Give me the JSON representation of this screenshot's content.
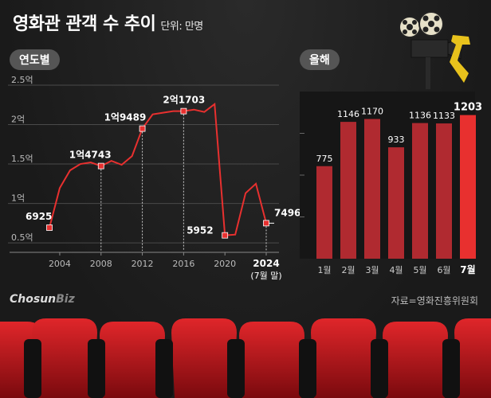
{
  "title": "영화관 관객 수 추이",
  "unit": "단위: 만명",
  "source": "자료=영화진흥위원회",
  "logo": {
    "main": "Chosun",
    "accent": "Biz"
  },
  "colors": {
    "line": "#e8302f",
    "bar": "#b02a30",
    "bar_highlight": "#e8302f",
    "background": "#1e1e1e",
    "seat": "#c8151b"
  },
  "chart_data": [
    {
      "type": "line",
      "label": "연도별",
      "x": [
        2003,
        2004,
        2005,
        2006,
        2007,
        2008,
        2009,
        2010,
        2011,
        2012,
        2013,
        2014,
        2015,
        2016,
        2017,
        2018,
        2019,
        2020,
        2021,
        2022,
        2023,
        2024
      ],
      "values": [
        6925,
        11950,
        14200,
        15000,
        15200,
        14743,
        15400,
        14900,
        16000,
        19489,
        21300,
        21500,
        21700,
        21703,
        21900,
        21600,
        22600,
        5952,
        6050,
        11300,
        12500,
        7496
      ],
      "point_labels": [
        {
          "index": 0,
          "text": "6925"
        },
        {
          "index": 5,
          "text": "1억4743"
        },
        {
          "index": 9,
          "text": "1억9489"
        },
        {
          "index": 13,
          "text": "2억1703"
        },
        {
          "index": 17,
          "text": "5952"
        },
        {
          "index": 21,
          "text": "7496"
        }
      ],
      "y_ticks": [
        {
          "value": 5000,
          "label": "0.5억"
        },
        {
          "value": 10000,
          "label": "1억"
        },
        {
          "value": 15000,
          "label": "1.5억"
        },
        {
          "value": 20000,
          "label": "2억"
        },
        {
          "value": 25000,
          "label": "2.5억"
        }
      ],
      "x_ticks": [
        {
          "value": 2004,
          "label": "2004"
        },
        {
          "value": 2008,
          "label": "2008"
        },
        {
          "value": 2012,
          "label": "2012"
        },
        {
          "value": 2016,
          "label": "2016"
        },
        {
          "value": 2020,
          "label": "2020"
        },
        {
          "value": 2024,
          "label": "2024"
        }
      ],
      "x_tick_note": "(7월 말)",
      "xlim": [
        2003,
        2024
      ],
      "ylim": [
        4000,
        25000
      ]
    },
    {
      "type": "bar",
      "label": "올해",
      "categories": [
        "1월",
        "2월",
        "3월",
        "4월",
        "5월",
        "6월",
        "7월"
      ],
      "values": [
        775,
        1146,
        1170,
        933,
        1136,
        1133,
        1203
      ],
      "highlight_index": 6,
      "ylim": [
        0,
        1400
      ]
    }
  ]
}
